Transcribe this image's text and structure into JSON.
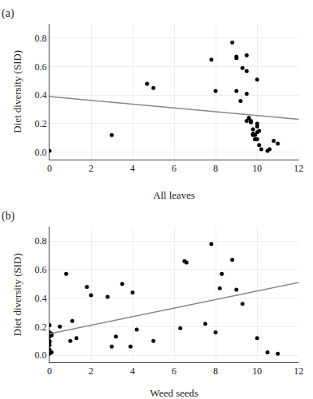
{
  "chart_data": [
    {
      "type": "scatter",
      "title": "(a)",
      "xlabel": "All leaves",
      "ylabel": "Diet diversity (SID)",
      "xlim": [
        0,
        12
      ],
      "ylim": [
        -0.05,
        0.9
      ],
      "xticks": [
        0,
        2,
        4,
        6,
        8,
        10,
        12
      ],
      "yticks": [
        {
          "value": 0.0,
          "label": "0.0"
        },
        0.2,
        0.4,
        0.6,
        0.8
      ],
      "series": [
        {
          "type": "scatter",
          "color": "black",
          "x": [
            0,
            3,
            4.7,
            5.0,
            7.8,
            8.0,
            8.8,
            9.0,
            9.0,
            9.0,
            9.2,
            9.3,
            9.5,
            9.5,
            9.5,
            9.5,
            9.6,
            9.7,
            9.7,
            9.8,
            9.8,
            9.8,
            9.9,
            9.9,
            10.0,
            10.0,
            10.0,
            10.0,
            10.0,
            10.1,
            10.1,
            10.2,
            10.5,
            10.6,
            10.8,
            11.0
          ],
          "values": [
            0.01,
            0.12,
            0.48,
            0.45,
            0.65,
            0.43,
            0.77,
            0.67,
            0.66,
            0.43,
            0.36,
            0.59,
            0.68,
            0.57,
            0.41,
            0.22,
            0.24,
            0.22,
            0.21,
            0.16,
            0.13,
            0.12,
            0.12,
            0.09,
            0.51,
            0.2,
            0.18,
            0.14,
            0.09,
            0.15,
            0.05,
            0.02,
            0.01,
            0.02,
            0.08,
            0.06
          ]
        },
        {
          "type": "line",
          "color": "#888888",
          "x": [
            0,
            12
          ],
          "values": [
            0.39,
            0.23
          ]
        }
      ]
    },
    {
      "type": "scatter",
      "title": "(b)",
      "xlabel": "Weed seeds",
      "ylabel": "Diet diversity (SID)",
      "xlim": [
        0,
        12
      ],
      "ylim": [
        -0.05,
        0.9
      ],
      "xticks": [
        0,
        2,
        4,
        6,
        8,
        10,
        12
      ],
      "yticks": [
        {
          "value": 0.0,
          "label": "0.0"
        },
        0.2,
        0.4,
        0.6,
        0.8
      ],
      "series": [
        {
          "type": "scatter",
          "color": "black",
          "x": [
            0.0,
            0.0,
            0.0,
            0.0,
            0.0,
            0.0,
            0.0,
            0.0,
            0.0,
            0.1,
            0.1,
            0.1,
            0.5,
            0.8,
            1.0,
            1.1,
            1.3,
            1.8,
            2.0,
            2.8,
            3.0,
            3.2,
            3.5,
            3.9,
            4.0,
            4.2,
            5.0,
            6.3,
            6.5,
            6.6,
            7.5,
            7.8,
            8.0,
            8.2,
            8.3,
            8.8,
            9.0,
            9.3,
            10.0,
            10.5,
            11.0
          ],
          "values": [
            0.21,
            0.16,
            0.15,
            0.13,
            0.1,
            0.09,
            0.07,
            0.04,
            0.01,
            0.15,
            0.14,
            0.02,
            0.2,
            0.57,
            0.1,
            0.24,
            0.12,
            0.48,
            0.42,
            0.41,
            0.06,
            0.13,
            0.5,
            0.06,
            0.44,
            0.18,
            0.1,
            0.19,
            0.66,
            0.65,
            0.22,
            0.78,
            0.16,
            0.47,
            0.57,
            0.67,
            0.46,
            0.36,
            0.12,
            0.02,
            0.01
          ]
        },
        {
          "type": "line",
          "color": "#888888",
          "x": [
            0,
            12
          ],
          "values": [
            0.15,
            0.51
          ]
        }
      ]
    }
  ]
}
